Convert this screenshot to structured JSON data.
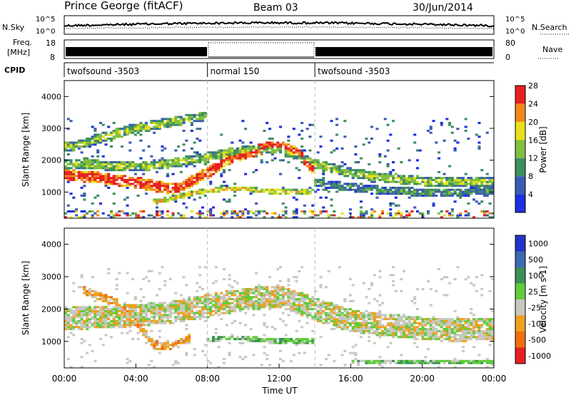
{
  "header": {
    "station": "Prince George (fitACF)",
    "beam": "Beam 03",
    "date": "30/Jun/2014"
  },
  "strip_nsky": {
    "left_label": "N.Sky",
    "right_label": "N.Search",
    "ticks_left": [
      "10^5",
      "10^0"
    ],
    "ticks_right": [
      "10^5",
      "10^0"
    ]
  },
  "strip_freq": {
    "left_label_1": "Freq.",
    "left_label_2": "[MHz]",
    "right_label": "Nave",
    "ticks_left": [
      "18",
      "8"
    ],
    "ticks_right": [
      "80",
      "0"
    ]
  },
  "cpid": {
    "label": "CPID",
    "segments": [
      {
        "name": "twofsound -3503",
        "start_h": 0,
        "end_h": 8
      },
      {
        "name": "normal 150",
        "start_h": 8,
        "end_h": 14
      },
      {
        "name": "twofsound -3503",
        "start_h": 14,
        "end_h": 24
      }
    ]
  },
  "chart_data": [
    {
      "type": "heatmap",
      "title": "",
      "ylabel": "Slant Range [km]",
      "yticks": [
        "1000",
        "2000",
        "3000",
        "4000"
      ],
      "ylim": [
        180,
        4500
      ],
      "xlim": [
        0,
        24
      ],
      "colorbar_label": "Power [dB]",
      "colorbar_ticks": [
        "4",
        "8",
        "12",
        "16",
        "20",
        "24",
        "28"
      ],
      "colorbar_colors": [
        "#1d2fe0",
        "#3b5bb5",
        "#3f8f5f",
        "#7fc040",
        "#e8e01a",
        "#f08a1a",
        "#e82020"
      ],
      "bands": [
        {
          "x": [
            0,
            2,
            4,
            6,
            7,
            8,
            9,
            10,
            11,
            12,
            13,
            14
          ],
          "y": [
            1550,
            1450,
            1300,
            1100,
            1300,
            1600,
            2000,
            2200,
            2350,
            2450,
            2250,
            1700
          ],
          "width": 350,
          "level": 6
        },
        {
          "x": [
            0,
            2,
            4,
            6,
            8,
            10,
            12,
            14,
            16,
            18,
            20,
            22,
            24
          ],
          "y": [
            1900,
            1850,
            1800,
            1900,
            2100,
            2300,
            2400,
            1900,
            1600,
            1450,
            1350,
            1300,
            1350
          ],
          "width": 300,
          "level": 3
        },
        {
          "x": [
            5,
            6,
            7,
            8,
            9,
            10,
            11,
            12,
            13,
            14
          ],
          "y": [
            700,
            800,
            950,
            1050,
            1100,
            1100,
            1050,
            1000,
            1000,
            1000
          ],
          "width": 150,
          "level": 4
        },
        {
          "x": [
            14,
            16,
            18,
            20,
            22,
            24
          ],
          "y": [
            1300,
            1150,
            1050,
            1000,
            1000,
            1050
          ],
          "width": 250,
          "level": 2
        },
        {
          "x": [
            0,
            1,
            2,
            3,
            4,
            5,
            6,
            7,
            8
          ],
          "y": [
            2400,
            2500,
            2700,
            2850,
            3000,
            3100,
            3200,
            3300,
            3400
          ],
          "width": 300,
          "level": 3
        }
      ]
    },
    {
      "type": "heatmap",
      "title": "",
      "ylabel": "Slant Range [km]",
      "yticks": [
        "1000",
        "2000",
        "3000",
        "4000"
      ],
      "ylim": [
        180,
        4500
      ],
      "xlim": [
        0,
        24
      ],
      "xticks": [
        "00:00",
        "04:00",
        "08:00",
        "12:00",
        "16:00",
        "20:00",
        "00:00"
      ],
      "xlabel": "Time UT",
      "colorbar_label": "Velocity [m s-1]",
      "colorbar_ticks": [
        "1000",
        "500",
        "100",
        "25",
        "-25",
        "-100",
        "-500",
        "-1000"
      ],
      "colorbar_colors": [
        "#2233cc",
        "#3b6ab0",
        "#3e8e5a",
        "#5fcc3a",
        "#c8c8c0",
        "#f0a020",
        "#f07010",
        "#e82020"
      ],
      "bands": [
        {
          "x": [
            0,
            2,
            4,
            6,
            8,
            10,
            12,
            14,
            16,
            18,
            20,
            22,
            24
          ],
          "y": [
            1700,
            1750,
            1800,
            1900,
            2100,
            2300,
            2400,
            2000,
            1650,
            1500,
            1400,
            1350,
            1400
          ],
          "width": 700,
          "level": 4
        },
        {
          "x": [
            8,
            9,
            10,
            11,
            12,
            13,
            14
          ],
          "y": [
            1050,
            1100,
            1100,
            1050,
            1000,
            1000,
            1000
          ],
          "width": 150,
          "level": 3
        },
        {
          "x": [
            1,
            2,
            3,
            4,
            5,
            6,
            7
          ],
          "y": [
            2600,
            2400,
            2200,
            1600,
            900,
            850,
            1100
          ],
          "width": 250,
          "level": 5
        },
        {
          "x": [
            16,
            18,
            20,
            22,
            24
          ],
          "y": [
            350,
            350,
            350,
            350,
            350
          ],
          "width": 150,
          "level": 3
        }
      ]
    }
  ]
}
